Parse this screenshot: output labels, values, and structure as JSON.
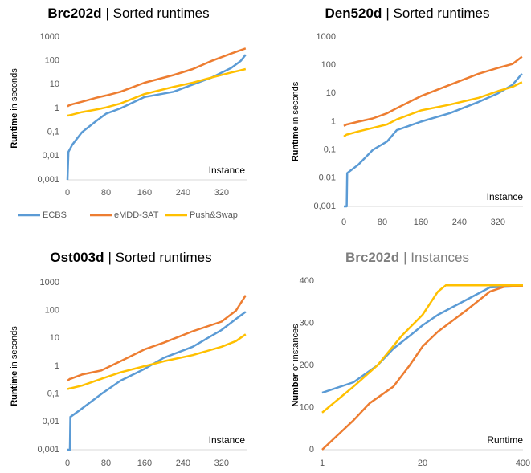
{
  "chart_data": [
    {
      "type": "line",
      "title": {
        "bold": "Brc202d",
        "rest": "| Sorted runtimes"
      },
      "title_color": "#000000",
      "ylabel": {
        "bold": "Runtime",
        "rest": "in seconds"
      },
      "xlabel": "Instance",
      "ylog": true,
      "ylim": [
        0.001,
        1000
      ],
      "yticks": [
        {
          "value": 0.001,
          "label": "0,001"
        },
        {
          "value": 0.01,
          "label": "0,01"
        },
        {
          "value": 0.1,
          "label": "0,1"
        },
        1,
        10,
        100,
        1000
      ],
      "xlim": [
        0,
        372
      ],
      "xticks": [
        0,
        80,
        160,
        240,
        320
      ],
      "legend": "bottom",
      "x": [
        0,
        2,
        10,
        30,
        60,
        80,
        110,
        160,
        220,
        260,
        300,
        340,
        360,
        370
      ],
      "series": [
        {
          "name": "ECBS",
          "color": "#5b9bd5",
          "values": [
            0.001,
            0.015,
            0.03,
            0.1,
            0.3,
            0.6,
            1,
            3,
            5,
            10,
            20,
            50,
            100,
            180
          ]
        },
        {
          "name": "eMDD-SAT",
          "color": "#ed7d31",
          "values": [
            1.2,
            1.3,
            1.5,
            1.9,
            2.8,
            3.5,
            5,
            12,
            25,
            45,
            100,
            200,
            280,
            330
          ]
        },
        {
          "name": "Push&Swap",
          "color": "#ffc000",
          "values": [
            0.5,
            0.5,
            0.55,
            0.7,
            0.9,
            1.1,
            1.6,
            4,
            8,
            12,
            20,
            32,
            40,
            45
          ]
        }
      ]
    },
    {
      "type": "line",
      "title": {
        "bold": "Den520d",
        "rest": "| Sorted runtimes"
      },
      "title_color": "#000000",
      "ylabel": {
        "bold": "Runtime",
        "rest": "in seconds"
      },
      "xlabel": "Instance",
      "ylog": true,
      "ylim": [
        0.001,
        1000
      ],
      "yticks": [
        {
          "value": 0.001,
          "label": "0,001"
        },
        {
          "value": 0.01,
          "label": "0,01"
        },
        {
          "value": 0.1,
          "label": "0,1"
        },
        1,
        10,
        100,
        1000
      ],
      "xlim": [
        0,
        372
      ],
      "xticks": [
        0,
        80,
        160,
        240,
        320
      ],
      "x": [
        0,
        6,
        7,
        30,
        60,
        90,
        110,
        160,
        220,
        280,
        320,
        350,
        370
      ],
      "series": [
        {
          "color": "#5b9bd5",
          "values": [
            0.001,
            0.001,
            0.015,
            0.03,
            0.1,
            0.2,
            0.5,
            1,
            2,
            5,
            10,
            20,
            50
          ]
        },
        {
          "color": "#ed7d31",
          "values": [
            0.7,
            0.8,
            0.8,
            1,
            1.3,
            2,
            3,
            8,
            20,
            50,
            80,
            110,
            200
          ]
        },
        {
          "color": "#ffc000",
          "values": [
            0.3,
            0.35,
            0.35,
            0.45,
            0.6,
            0.8,
            1.2,
            2.5,
            4,
            7,
            12,
            17,
            25
          ]
        }
      ]
    },
    {
      "type": "line",
      "title": {
        "bold": "Ost003d",
        "rest": "| Sorted runtimes"
      },
      "title_color": "#000000",
      "ylabel": {
        "bold": "Runtime",
        "rest": "in seconds"
      },
      "xlabel": "Instance",
      "ylog": true,
      "ylim": [
        0.001,
        1000
      ],
      "yticks": [
        {
          "value": 0.001,
          "label": "0,001"
        },
        {
          "value": 0.01,
          "label": "0,01"
        },
        {
          "value": 0.1,
          "label": "0,1"
        },
        1,
        10,
        100,
        1000
      ],
      "xlim": [
        0,
        372
      ],
      "xticks": [
        0,
        80,
        160,
        240,
        320
      ],
      "x": [
        0,
        5,
        6,
        30,
        70,
        110,
        160,
        200,
        260,
        320,
        350,
        370
      ],
      "series": [
        {
          "color": "#5b9bd5",
          "values": [
            0.001,
            0.001,
            0.015,
            0.03,
            0.1,
            0.3,
            0.8,
            2,
            5,
            20,
            50,
            90
          ]
        },
        {
          "color": "#ed7d31",
          "values": [
            0.3,
            0.35,
            0.35,
            0.5,
            0.7,
            1.5,
            4,
            7,
            18,
            40,
            100,
            350
          ]
        },
        {
          "color": "#ffc000",
          "values": [
            0.15,
            0.16,
            0.16,
            0.2,
            0.35,
            0.6,
            1,
            1.5,
            2.5,
            5,
            8,
            14
          ]
        }
      ]
    },
    {
      "type": "line",
      "title": {
        "bold": "Brc202d",
        "rest": "| Instances"
      },
      "title_color": "#7f7f7f",
      "ylabel": {
        "bold": "Number",
        "rest": "of instances"
      },
      "xlabel": "Runtime",
      "xlog": true,
      "xlim": [
        1,
        400
      ],
      "xticks": [
        1,
        20,
        400
      ],
      "ylim": [
        0,
        400
      ],
      "yticks": [
        0,
        100,
        200,
        300,
        400
      ],
      "series": [
        {
          "color": "#5b9bd5",
          "x": [
            1,
            2.55,
            5.2,
            8.4,
            13.6,
            20,
            31.6,
            73,
            149,
            400
          ],
          "values": [
            135,
            160,
            200,
            240,
            270,
            295,
            320,
            355,
            385,
            388
          ]
        },
        {
          "color": "#ed7d31",
          "x": [
            1,
            2.55,
            4.1,
            8.4,
            13.6,
            20,
            31.6,
            73,
            149,
            242,
            400
          ],
          "values": [
            0,
            70,
            110,
            150,
            200,
            245,
            280,
            330,
            375,
            388,
            388
          ]
        },
        {
          "color": "#ffc000",
          "x": [
            1,
            2.55,
            5.2,
            10.7,
            20,
            31.6,
            40,
            400
          ],
          "values": [
            88,
            150,
            200,
            270,
            320,
            375,
            390,
            390
          ]
        }
      ]
    }
  ]
}
